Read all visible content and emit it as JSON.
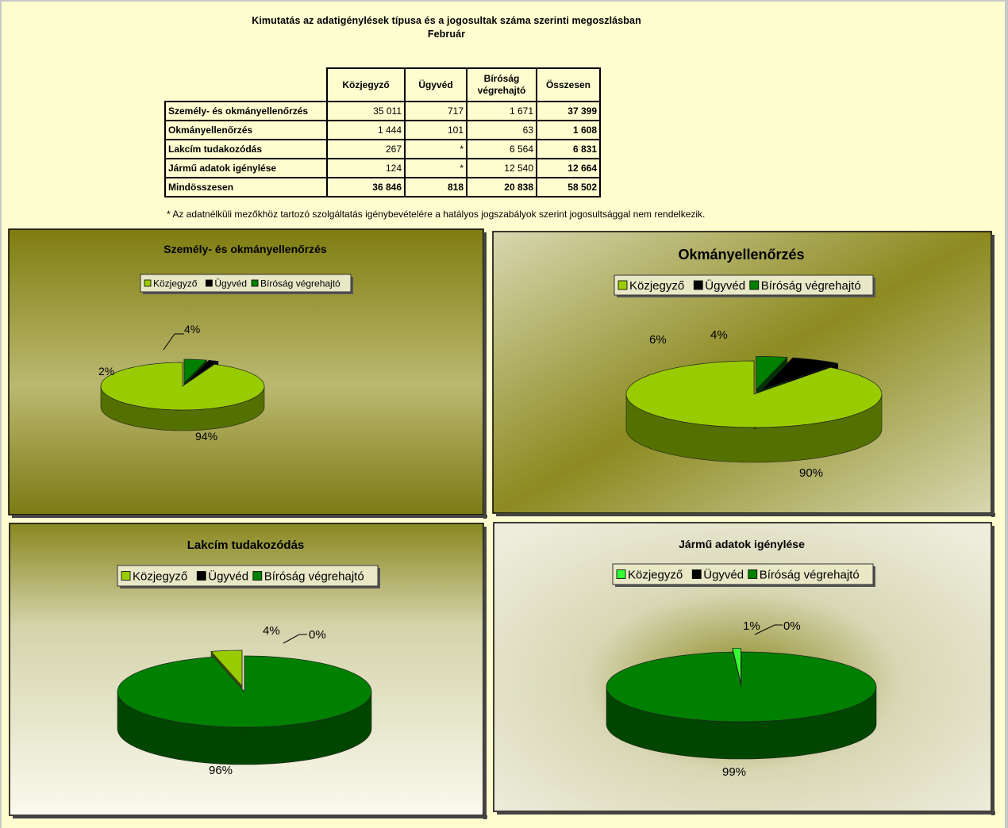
{
  "title_line1": "Kimutatás az adatigénylések típusa és a jogosultak száma szerinti megoszlásban",
  "title_line2": "Február",
  "table": {
    "columns": [
      "Közjegyző",
      "Ügyvéd",
      "Bíróság végrehajtó",
      "Összesen"
    ],
    "rows": [
      {
        "label": "Személy- és okmányellenőrzés",
        "values": [
          "35 011",
          "717",
          "1 671",
          "37 399"
        ]
      },
      {
        "label": "Okmányellenőrzés",
        "values": [
          "1 444",
          "101",
          "63",
          "1 608"
        ]
      },
      {
        "label": "Lakcím tudakozódás",
        "values": [
          "267",
          "*",
          "6 564",
          "6 831"
        ]
      },
      {
        "label": "Jármű adatok igénylése",
        "values": [
          "124",
          "*",
          "12 540",
          "12 664"
        ]
      },
      {
        "label": "Mindösszesen",
        "values": [
          "36 846",
          "818",
          "20 838",
          "58 502"
        ]
      }
    ]
  },
  "footnote": "* Az adatnélküli mezőkhöz tartozó szolgáltatás igénybevételére a hatályos jogszabályok szerint jogosultsággal nem rendelkezik.",
  "chart_data": [
    {
      "type": "pie",
      "title": "Személy- és okmányellenőrzés",
      "categories": [
        "Közjegyző",
        "Ügyvéd",
        "Bíróság végrehajtó"
      ],
      "values": [
        35011,
        717,
        1671
      ],
      "labels": [
        "94%",
        "2%",
        "4%"
      ],
      "colors": [
        "#99cc00",
        "#000000",
        "#008000"
      ],
      "legend": "top",
      "background": "olive-gradient"
    },
    {
      "type": "pie",
      "title": "Okmányellenőrzés",
      "categories": [
        "Közjegyző",
        "Ügyvéd",
        "Bíróság végrehajtó"
      ],
      "values": [
        1444,
        101,
        63
      ],
      "labels": [
        "90%",
        "6%",
        "4%"
      ],
      "colors": [
        "#99cc00",
        "#000000",
        "#008000"
      ],
      "legend": "top",
      "background": "olive-diagonal"
    },
    {
      "type": "pie",
      "title": "Lakcím tudakozódás",
      "categories": [
        "Közjegyző",
        "Ügyvéd",
        "Bíróság végrehajtó"
      ],
      "values": [
        267,
        0,
        6564
      ],
      "labels": [
        "4%",
        "0%",
        "96%"
      ],
      "colors": [
        "#99cc00",
        "#000000",
        "#008000"
      ],
      "legend": "top",
      "background": "olive-vertical"
    },
    {
      "type": "pie",
      "title": "Jármű adatok igénylése",
      "categories": [
        "Közjegyző",
        "Ügyvéd",
        "Bíróság végrehajtó"
      ],
      "values": [
        124,
        0,
        12540
      ],
      "labels": [
        "1%",
        "0%",
        "99%"
      ],
      "colors": [
        "#33ff33",
        "#000000",
        "#008000"
      ],
      "legend": "top",
      "background": "olive-radial"
    }
  ]
}
